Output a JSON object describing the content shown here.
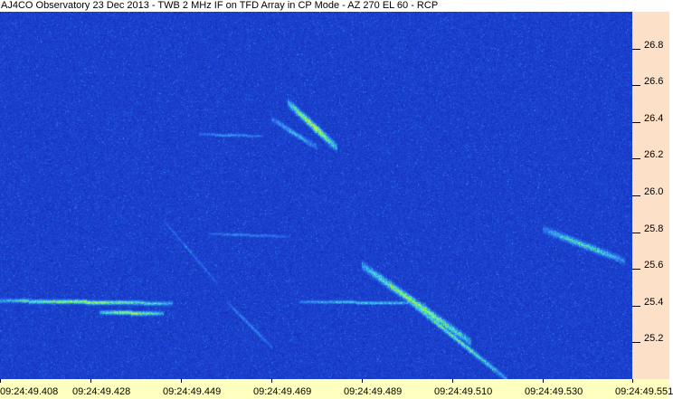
{
  "title": "AJ4CO Observatory 23 Dec 2013 - TWB 2 MHz IF on TFD Array in CP Mode - AZ 270 EL 60 - RCP",
  "chart_data": {
    "type": "heatmap",
    "title": "AJ4CO Observatory 23 Dec 2013 - TWB 2 MHz IF on TFD Array in CP Mode - AZ 270 EL 60 - RCP",
    "xlabel": "",
    "ylabel": "",
    "x_tick_labels": [
      "09:24:49.408",
      "09:24:49.428",
      "09:24:49.449",
      "09:24:49.469",
      "09:24:49.489",
      "09:24:49.510",
      "09:24:49.530",
      "09:24:49.551"
    ],
    "y_tick_labels": [
      "26.8",
      "26.6",
      "26.4",
      "26.2",
      "26.0",
      "25.8",
      "25.6",
      "25.4",
      "25.2"
    ],
    "y_ticks": [
      26.8,
      26.6,
      26.4,
      26.2,
      26.0,
      25.8,
      25.6,
      25.4,
      25.2
    ],
    "ylim": [
      25.0,
      27.0
    ],
    "xlim": [
      "09:24:49.408",
      "09:24:49.551"
    ],
    "y_axis_position": "right",
    "grid": false,
    "colormap": [
      "#06127a",
      "#1a3fd0",
      "#2f7cf0",
      "#3fe0e0",
      "#9cf040",
      "#f0f020"
    ],
    "axis_colors": {
      "y_axis_bg": "#fde0c8",
      "x_axis_bg": "#ffffc0"
    }
  }
}
